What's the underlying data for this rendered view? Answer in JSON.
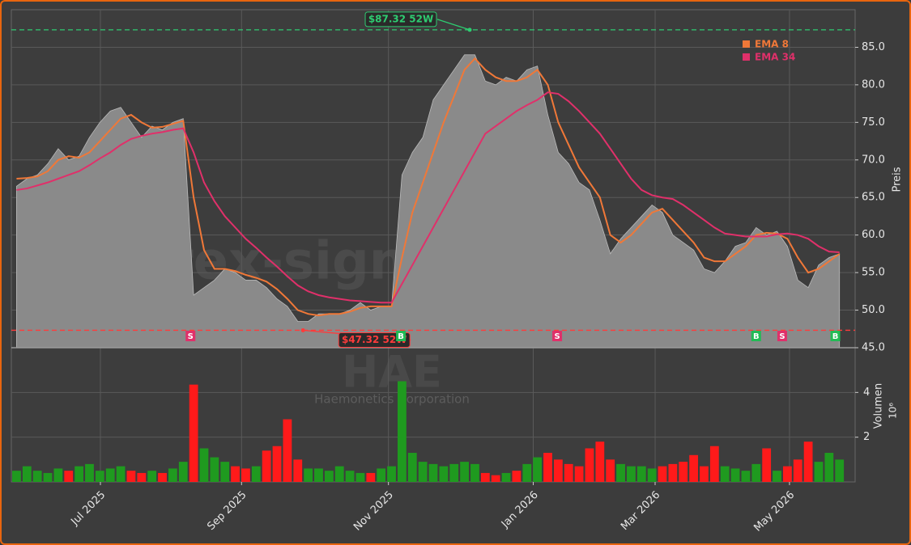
{
  "chart_data": {
    "type": "area",
    "watermark": "forex-signale.trade",
    "ticker": "HAE",
    "company": "Haemonetics Corporation",
    "ylabel": "Preis",
    "close_color": "#8a8a8a",
    "xlim": [
      -0.5,
      80.5
    ],
    "xticks": [
      {
        "value": 8.05,
        "label": "Jul 2025"
      },
      {
        "value": 21.6,
        "label": "Sep 2025"
      },
      {
        "value": 35.7,
        "label": "Nov 2025"
      },
      {
        "value": 49.6,
        "label": "Jan 2026"
      },
      {
        "value": 61.3,
        "label": "Mar 2026"
      },
      {
        "value": 74.2,
        "label": "May 2026"
      }
    ],
    "ylim": [
      45,
      90
    ],
    "yticks": [
      {
        "value": 45,
        "label": "45.0"
      },
      {
        "value": 50,
        "label": "50.0"
      },
      {
        "value": 55,
        "label": "55.0"
      },
      {
        "value": 60,
        "label": "60.0"
      },
      {
        "value": 65,
        "label": "65.0"
      },
      {
        "value": 70,
        "label": "70.0"
      },
      {
        "value": 75,
        "label": "75.0"
      },
      {
        "value": 80,
        "label": "80.0"
      },
      {
        "value": 85,
        "label": "85.0"
      }
    ],
    "grid": true,
    "close": [
      66.5,
      67.5,
      68,
      69.5,
      71.5,
      70,
      70.5,
      73,
      75,
      76.5,
      77,
      75,
      73,
      74.5,
      74,
      75,
      75.5,
      52,
      53,
      54,
      55.5,
      55,
      54,
      54,
      53,
      51.5,
      50.5,
      48.5,
      48.5,
      49.5,
      49.5,
      49.5,
      50,
      51,
      50,
      50.5,
      50.5,
      68,
      71,
      73,
      78,
      80,
      82,
      84,
      84,
      80.5,
      80,
      81,
      80.5,
      82,
      82.5,
      76,
      71,
      69.5,
      67,
      66,
      62,
      57.5,
      59.5,
      61,
      62.5,
      64,
      63,
      60,
      59,
      58,
      55.5,
      55,
      56.5,
      58.5,
      59,
      61,
      60,
      60.5,
      58.5,
      54,
      53,
      56,
      57,
      57.5
    ],
    "series": [
      {
        "name": "EMA 8",
        "color": "#f07838",
        "values": [
          67.5,
          67.6,
          67.8,
          68.5,
          70,
          70.5,
          70.3,
          71,
          72.5,
          74,
          75.5,
          76,
          75,
          74.3,
          74.4,
          74.8,
          75.2,
          65,
          58,
          55.5,
          55.5,
          55.2,
          54.7,
          54.3,
          53.8,
          52.8,
          51.5,
          50,
          49.5,
          49.3,
          49.5,
          49.5,
          49.8,
          50.3,
          50.5,
          50.5,
          50.5,
          57,
          63,
          67,
          71,
          75,
          78.5,
          82,
          83.5,
          82,
          81,
          80.5,
          80.5,
          81,
          82,
          80,
          75,
          72,
          69,
          67,
          65,
          60,
          59,
          60,
          61.5,
          63,
          63.5,
          62,
          60.5,
          59,
          57,
          56.5,
          56.5,
          57.5,
          58.5,
          60,
          60.3,
          60.2,
          59.5,
          57,
          55,
          55.5,
          56.5,
          57.5
        ]
      },
      {
        "name": "EMA 34",
        "color": "#e0306a",
        "values": [
          66,
          66.2,
          66.6,
          67,
          67.5,
          68,
          68.5,
          69.3,
          70.2,
          71,
          72,
          72.8,
          73.2,
          73.5,
          73.7,
          74,
          74.2,
          71,
          67,
          64.5,
          62.5,
          61,
          59.5,
          58.3,
          57,
          55.8,
          54.5,
          53.3,
          52.5,
          52,
          51.7,
          51.5,
          51.3,
          51.2,
          51.1,
          51,
          51,
          53.5,
          56,
          58.5,
          61,
          63.5,
          66,
          68.5,
          71,
          73.5,
          74.5,
          75.5,
          76.5,
          77.3,
          78,
          79,
          78.8,
          77.8,
          76.5,
          75,
          73.5,
          71.5,
          69.5,
          67.5,
          66,
          65.3,
          65,
          64.8,
          64,
          63,
          62,
          61,
          60.2,
          60,
          59.8,
          59.8,
          59.8,
          60.1,
          60.2,
          60,
          59.5,
          58.5,
          57.8,
          57.7
        ]
      }
    ],
    "annotations": [
      {
        "text": "$87.32 52W",
        "value": 87.32,
        "x": 43.5,
        "color": "#2ecc71"
      },
      {
        "text": "$47.32 52W",
        "value": 47.32,
        "x": 27.5,
        "color": "#ff3b3b"
      }
    ],
    "signals": [
      {
        "x": 16.7,
        "label": "S",
        "color": "#e0306a"
      },
      {
        "x": 36.9,
        "label": "B",
        "color": "#22bb55"
      },
      {
        "x": 51.9,
        "label": "S",
        "color": "#e0306a"
      },
      {
        "x": 71.0,
        "label": "B",
        "color": "#22bb55"
      },
      {
        "x": 73.5,
        "label": "S",
        "color": "#e0306a"
      },
      {
        "x": 78.6,
        "label": "B",
        "color": "#22bb55"
      }
    ],
    "volume": {
      "ylabel": "Volumen",
      "scale_label": "10⁶",
      "ylim": [
        0,
        6
      ],
      "yticks": [
        2,
        4
      ],
      "up_color": "#1f9a1f",
      "down_color": "#ff1a1a",
      "values": [
        0.5,
        0.7,
        0.5,
        0.4,
        0.6,
        0.5,
        0.7,
        0.8,
        0.5,
        0.6,
        0.7,
        0.5,
        0.4,
        0.5,
        0.4,
        0.6,
        0.9,
        4.35,
        1.5,
        1.1,
        0.9,
        0.7,
        0.6,
        0.7,
        1.4,
        1.6,
        2.8,
        1.0,
        0.6,
        0.6,
        0.5,
        0.7,
        0.5,
        0.4,
        0.4,
        0.6,
        0.7,
        4.5,
        1.3,
        0.9,
        0.8,
        0.7,
        0.8,
        0.9,
        0.8,
        0.4,
        0.3,
        0.4,
        0.5,
        0.8,
        1.1,
        1.3,
        1.0,
        0.8,
        0.7,
        1.5,
        1.8,
        1.0,
        0.8,
        0.7,
        0.7,
        0.6,
        0.7,
        0.8,
        0.9,
        1.2,
        0.7,
        1.6,
        0.7,
        0.6,
        0.5,
        0.8,
        1.5,
        0.5,
        0.7,
        1.0,
        1.8,
        0.9,
        1.3,
        1.0
      ]
    }
  }
}
